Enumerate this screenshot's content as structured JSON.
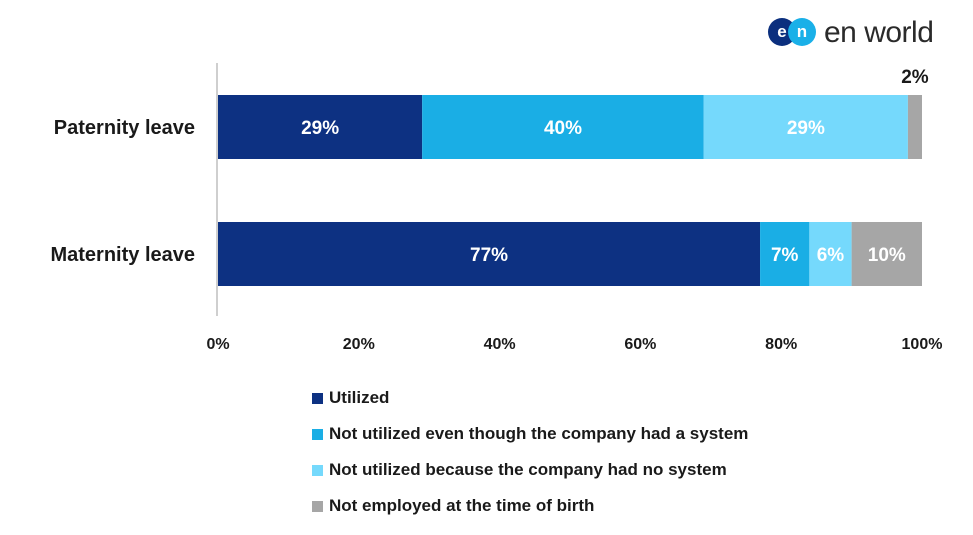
{
  "logo": {
    "badge_e": "e",
    "badge_n": "n",
    "wordmark": "en world",
    "colors": [
      "#0b2f7e",
      "#1ab0e8"
    ]
  },
  "chart_data": {
    "type": "bar",
    "orientation": "horizontal",
    "stacked": true,
    "categories": [
      "Paternity leave",
      "Maternity leave"
    ],
    "series": [
      {
        "name": "Utilized",
        "values": [
          29,
          77
        ],
        "labels": [
          "29%",
          "77%"
        ],
        "color": "#0d3182"
      },
      {
        "name": "Not utilized even though the company had a system",
        "values": [
          40,
          7
        ],
        "labels": [
          "40%",
          "7%"
        ],
        "color": "#1aaee5"
      },
      {
        "name": "Not utilized because the company had no system",
        "values": [
          29,
          6
        ],
        "labels": [
          "29%",
          "6%"
        ],
        "color": "#75d9fc"
      },
      {
        "name": "Not employed at the time of birth",
        "values": [
          2,
          10
        ],
        "labels": [
          "2%",
          "10%"
        ],
        "color": "#a6a6a6"
      }
    ],
    "xlim": [
      0,
      100
    ],
    "xticks": [
      "0%",
      "20%",
      "40%",
      "60%",
      "80%",
      "100%"
    ],
    "grid": false,
    "legend_position": "bottom"
  }
}
